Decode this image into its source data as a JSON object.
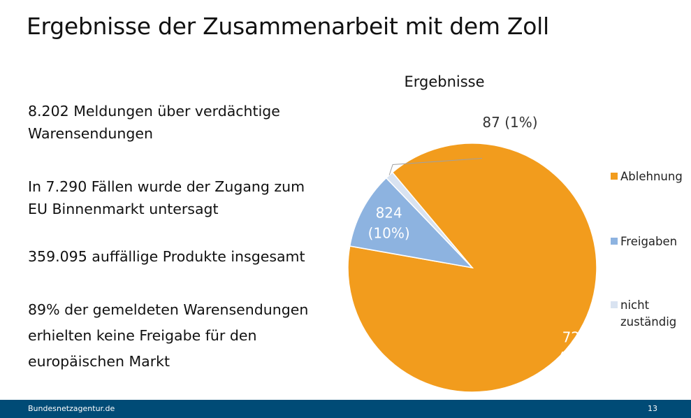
{
  "slide": {
    "title": "Ergebnisse der Zusammenarbeit mit dem Zoll",
    "bullets": [
      "8.202 Meldungen über verdächtige Warensendungen",
      "In 7.290 Fällen wurde der Zugang zum EU Binnenmarkt untersagt",
      "359.095 auffällige Produkte insgesamt",
      "89% der gemeldeten Warensendungen erhielten keine Freigabe für den europäischen Markt"
    ]
  },
  "chart_data": {
    "type": "pie",
    "title": "Ergebnisse",
    "legend_position": "right",
    "slices": [
      {
        "label": "Ablehnung",
        "value": 7290,
        "percent_label": "(89%)",
        "color": "#f29c1d"
      },
      {
        "label": "Freigaben",
        "value": 824,
        "percent_label": "(10%)",
        "color": "#8db3e0"
      },
      {
        "label": "nicht zuständig",
        "value": 87,
        "percent_label": "(1%)",
        "color": "#d9e3f1"
      }
    ]
  },
  "footer": {
    "site": "Bundesnetzagentur.de",
    "page_number": "13"
  }
}
